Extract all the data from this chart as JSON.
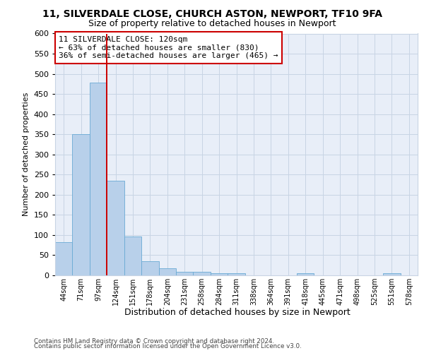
{
  "title_line1": "11, SILVERDALE CLOSE, CHURCH ASTON, NEWPORT, TF10 9FA",
  "title_line2": "Size of property relative to detached houses in Newport",
  "xlabel": "Distribution of detached houses by size in Newport",
  "ylabel": "Number of detached properties",
  "footnote_line1": "Contains HM Land Registry data © Crown copyright and database right 2024.",
  "footnote_line2": "Contains public sector information licensed under the Open Government Licence v3.0.",
  "bar_labels": [
    "44sqm",
    "71sqm",
    "97sqm",
    "124sqm",
    "151sqm",
    "178sqm",
    "204sqm",
    "231sqm",
    "258sqm",
    "284sqm",
    "311sqm",
    "338sqm",
    "364sqm",
    "391sqm",
    "418sqm",
    "445sqm",
    "471sqm",
    "498sqm",
    "525sqm",
    "551sqm",
    "578sqm"
  ],
  "bar_values": [
    83,
    350,
    478,
    235,
    97,
    35,
    18,
    8,
    8,
    5,
    5,
    0,
    0,
    0,
    6,
    0,
    0,
    0,
    0,
    5,
    0
  ],
  "bar_color": "#b8d0ea",
  "bar_edge_color": "#6aaad4",
  "grid_color": "#c8d4e4",
  "background_color": "#e8eef8",
  "ref_line_color": "#cc0000",
  "ref_line_bar_index": 3,
  "annotation_text_line1": "11 SILVERDALE CLOSE: 120sqm",
  "annotation_text_line2": "← 63% of detached houses are smaller (830)",
  "annotation_text_line3": "36% of semi-detached houses are larger (465) →",
  "annotation_fontsize": 8,
  "ylim_max": 600,
  "ytick_step": 50,
  "title1_fontsize": 10,
  "title2_fontsize": 9,
  "ylabel_fontsize": 8,
  "xlabel_fontsize": 9,
  "xtick_fontsize": 7,
  "ytick_fontsize": 8
}
